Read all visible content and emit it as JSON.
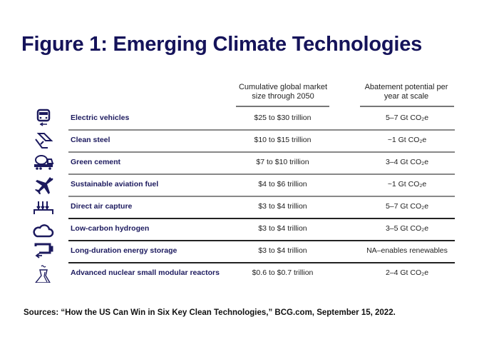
{
  "title": "Figure 1: Emerging Climate Technologies",
  "columns": {
    "market": "Cumulative global market size through 2050",
    "abatement": "Abatement potential per year at scale"
  },
  "rows": [
    {
      "name": "Electric vehicles",
      "market": "$25 to $30 trillion",
      "abatement": "5–7 Gt CO₂e",
      "icon": "electric-car-icon"
    },
    {
      "name": "Clean steel",
      "market": "$10 to $15 trillion",
      "abatement": "~1 Gt CO₂e",
      "icon": "steel-beam-icon"
    },
    {
      "name": "Green cement",
      "market": "$7 to $10 trillion",
      "abatement": "3–4 Gt CO₂e",
      "icon": "cement-mixer-icon"
    },
    {
      "name": "Sustainable aviation fuel",
      "market": "$4 to $6 trillion",
      "abatement": "~1 Gt CO₂e",
      "icon": "airplane-icon"
    },
    {
      "name": "Direct air capture",
      "market": "$3 to $4 trillion",
      "abatement": "5–7 Gt CO₂e",
      "icon": "air-capture-icon"
    },
    {
      "name": "Low-carbon hydrogen",
      "market": "$3 to $4 trillion",
      "abatement": "3–5 Gt CO₂e",
      "icon": "cloud-icon"
    },
    {
      "name": "Long-duration energy storage",
      "market": "$3 to $4 trillion",
      "abatement": "NA–enables renewables",
      "icon": "battery-icon"
    },
    {
      "name": "Advanced nuclear small modular reactors",
      "market": "$0.6 to $0.7 trillion",
      "abatement": "2–4 Gt CO₂e",
      "icon": "cooling-tower-icon"
    }
  ],
  "sources": "Sources: “How the US Can Win in Six Key Clean Technologies,” BCG.com, September 15, 2022.",
  "colors": {
    "navy": "#1c1a5e",
    "rule_light": "#888888",
    "rule_dark": "#222222"
  }
}
